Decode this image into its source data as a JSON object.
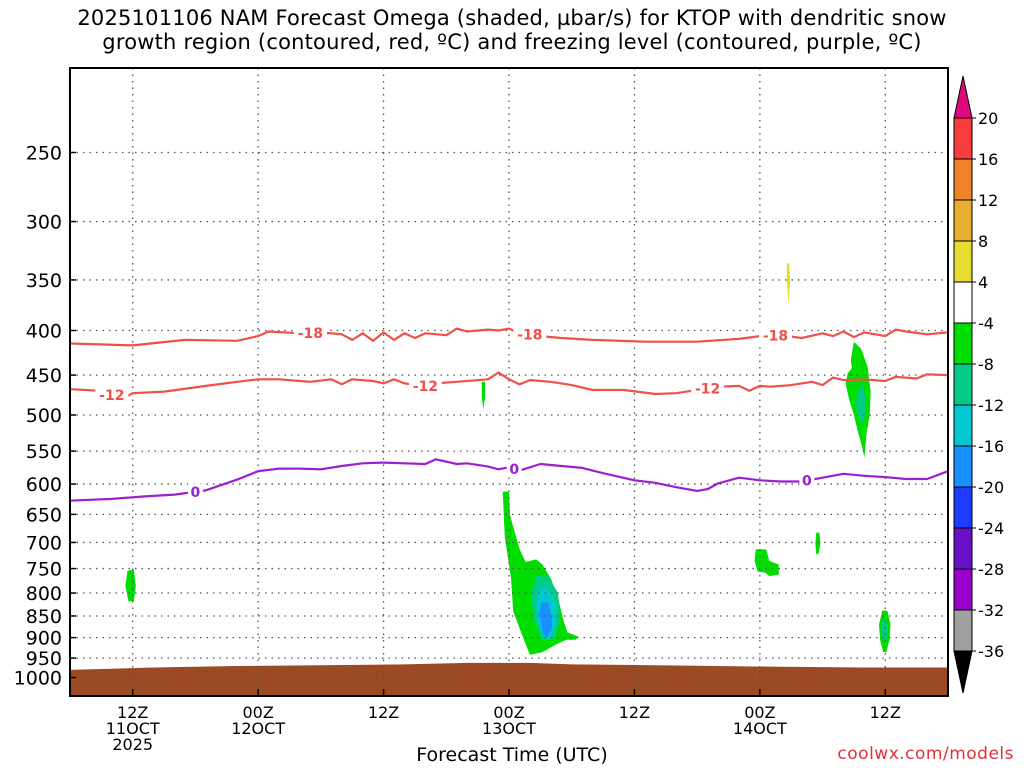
{
  "chart_data": {
    "type": "heatmap",
    "title_line1": "2025101106 NAM Forecast Omega (shaded, µbar/s) for KTOP with dendritic snow",
    "title_line2": "growth region (contoured, red, ºC) and freezing level (contoured, purple, ºC)",
    "xlabel": "Forecast Time (UTC)",
    "ylabel": "",
    "x_unit": "forecast hours from 2025-10-11 06Z",
    "xlim": [
      0,
      84
    ],
    "ylim": [
      1050,
      200
    ],
    "y_scale": "log-pressure",
    "y_ticks": [
      250,
      300,
      350,
      400,
      450,
      500,
      550,
      600,
      650,
      700,
      750,
      800,
      850,
      900,
      950,
      1000
    ],
    "x_ticks": [
      {
        "hour": 6,
        "lines": [
          "12Z",
          "11OCT",
          "2025"
        ]
      },
      {
        "hour": 18,
        "lines": [
          "00Z",
          "12OCT"
        ]
      },
      {
        "hour": 30,
        "lines": [
          "12Z"
        ]
      },
      {
        "hour": 42,
        "lines": [
          "00Z",
          "13OCT"
        ]
      },
      {
        "hour": 54,
        "lines": [
          "12Z"
        ]
      },
      {
        "hour": 66,
        "lines": [
          "00Z",
          "14OCT"
        ]
      },
      {
        "hour": 78,
        "lines": [
          "12Z"
        ]
      }
    ],
    "grid": true,
    "colorbar": {
      "levels": [
        -36,
        -32,
        -28,
        -24,
        -20,
        -16,
        -12,
        -8,
        -4,
        4,
        8,
        12,
        16,
        20
      ],
      "colors": [
        "#000000",
        "#a0a0a0",
        "#9a00cc",
        "#6a0fc8",
        "#1e3cff",
        "#1a8fff",
        "#00c8d2",
        "#00cc88",
        "#00dd00",
        "#ffffff",
        "#e6dc32",
        "#e6af2d",
        "#f08228",
        "#fa3c3c",
        "#e0087e"
      ]
    },
    "contours": [
      {
        "label": "-18",
        "color": "#f0504a",
        "kind": "dendritic",
        "label_hours": [
          23,
          44,
          67.5
        ],
        "points": [
          [
            0,
            414
          ],
          [
            6,
            416
          ],
          [
            11,
            410
          ],
          [
            16,
            411
          ],
          [
            18,
            406
          ],
          [
            19,
            401
          ],
          [
            22,
            403
          ],
          [
            24,
            402
          ],
          [
            26,
            404
          ],
          [
            27,
            410
          ],
          [
            28,
            403
          ],
          [
            29,
            411
          ],
          [
            30,
            402
          ],
          [
            31,
            410
          ],
          [
            32,
            403
          ],
          [
            33,
            408
          ],
          [
            34,
            403
          ],
          [
            36,
            405
          ],
          [
            37,
            398
          ],
          [
            38,
            401
          ],
          [
            40,
            399
          ],
          [
            41,
            400
          ],
          [
            42,
            398
          ],
          [
            43,
            403
          ],
          [
            45,
            406
          ],
          [
            47,
            408
          ],
          [
            50,
            410
          ],
          [
            55,
            412
          ],
          [
            60,
            412
          ],
          [
            64,
            409
          ],
          [
            66,
            406
          ],
          [
            68,
            405
          ],
          [
            70,
            408
          ],
          [
            72,
            403
          ],
          [
            73,
            406
          ],
          [
            74,
            401
          ],
          [
            75,
            407
          ],
          [
            76,
            402
          ],
          [
            78,
            406
          ],
          [
            79,
            399
          ],
          [
            80,
            401
          ],
          [
            82,
            404
          ],
          [
            84,
            402
          ]
        ]
      },
      {
        "label": "-12",
        "color": "#f0504a",
        "kind": "dendritic",
        "label_hours": [
          4,
          34,
          61
        ],
        "points": [
          [
            0,
            467
          ],
          [
            3,
            469
          ],
          [
            5,
            479
          ],
          [
            6,
            472
          ],
          [
            9,
            470
          ],
          [
            13,
            463
          ],
          [
            16,
            458
          ],
          [
            18,
            455
          ],
          [
            20,
            455
          ],
          [
            22,
            457
          ],
          [
            23,
            458
          ],
          [
            25,
            455
          ],
          [
            26,
            461
          ],
          [
            27,
            455
          ],
          [
            29,
            457
          ],
          [
            30,
            460
          ],
          [
            31,
            455
          ],
          [
            32,
            460
          ],
          [
            34,
            463
          ],
          [
            35,
            460
          ],
          [
            37,
            458
          ],
          [
            40,
            455
          ],
          [
            41,
            447
          ],
          [
            42,
            455
          ],
          [
            43,
            461
          ],
          [
            44,
            456
          ],
          [
            46,
            458
          ],
          [
            48,
            462
          ],
          [
            50,
            468
          ],
          [
            53,
            468
          ],
          [
            56,
            473
          ],
          [
            58,
            472
          ],
          [
            62,
            464
          ],
          [
            64,
            463
          ],
          [
            65,
            469
          ],
          [
            66,
            463
          ],
          [
            67,
            464
          ],
          [
            69,
            462
          ],
          [
            71,
            458
          ],
          [
            72,
            462
          ],
          [
            73,
            453
          ],
          [
            74,
            456
          ],
          [
            76,
            455
          ],
          [
            78,
            457
          ],
          [
            79,
            452
          ],
          [
            81,
            454
          ],
          [
            82,
            449
          ],
          [
            84,
            450
          ]
        ]
      },
      {
        "label": "0",
        "color": "#9b1fd0",
        "kind": "freezing",
        "label_hours": [
          12,
          42.5,
          70.5
        ],
        "points": [
          [
            0,
            627
          ],
          [
            4,
            624
          ],
          [
            7,
            620
          ],
          [
            10,
            617
          ],
          [
            13,
            610
          ],
          [
            16,
            593
          ],
          [
            18,
            580
          ],
          [
            20,
            576
          ],
          [
            22,
            576
          ],
          [
            24,
            577
          ],
          [
            26,
            572
          ],
          [
            28,
            568
          ],
          [
            30,
            567
          ],
          [
            32,
            568
          ],
          [
            34,
            569
          ],
          [
            35,
            562
          ],
          [
            37,
            569
          ],
          [
            38,
            568
          ],
          [
            40,
            573
          ],
          [
            41,
            577
          ],
          [
            42,
            574
          ],
          [
            43,
            579
          ],
          [
            45,
            569
          ],
          [
            47,
            572
          ],
          [
            49,
            575
          ],
          [
            51,
            583
          ],
          [
            54,
            594
          ],
          [
            56,
            598
          ],
          [
            58,
            605
          ],
          [
            60,
            611
          ],
          [
            61,
            608
          ],
          [
            62,
            599
          ],
          [
            64,
            590
          ],
          [
            66,
            594
          ],
          [
            68,
            596
          ],
          [
            70,
            596
          ],
          [
            72,
            590
          ],
          [
            74,
            584
          ],
          [
            76,
            587
          ],
          [
            78,
            589
          ],
          [
            80,
            592
          ],
          [
            82,
            592
          ],
          [
            84,
            580
          ]
        ]
      }
    ],
    "shaded_features": [
      {
        "color": "#00dd00",
        "points": [
          [
            41.4,
            612
          ],
          [
            41.6,
            690
          ],
          [
            42.2,
            770
          ],
          [
            42.4,
            840
          ],
          [
            43.2,
            890
          ],
          [
            44,
            942
          ],
          [
            45.2,
            935
          ],
          [
            46.6,
            915
          ],
          [
            47.5,
            905
          ],
          [
            48.4,
            905
          ],
          [
            48.6,
            897
          ],
          [
            47.6,
            888
          ],
          [
            47.2,
            860
          ],
          [
            46.7,
            810
          ],
          [
            46,
            770
          ],
          [
            45.2,
            742
          ],
          [
            44.6,
            732
          ],
          [
            43.6,
            737
          ],
          [
            43,
            712
          ],
          [
            42.1,
            652
          ],
          [
            42,
            612
          ]
        ]
      },
      {
        "color": "#00cc88",
        "points": [
          [
            44.6,
            765
          ],
          [
            45.7,
            765
          ],
          [
            46.7,
            800
          ],
          [
            46.9,
            860
          ],
          [
            46.3,
            905
          ],
          [
            45.1,
            905
          ],
          [
            44.4,
            860
          ],
          [
            44.1,
            800
          ]
        ]
      },
      {
        "color": "#00c8d2",
        "points": [
          [
            44.9,
            790
          ],
          [
            45.7,
            790
          ],
          [
            46.4,
            820
          ],
          [
            46.5,
            870
          ],
          [
            46,
            900
          ],
          [
            45.3,
            900
          ],
          [
            44.8,
            865
          ],
          [
            44.6,
            820
          ]
        ]
      },
      {
        "color": "#1a8fff",
        "points": [
          [
            45.1,
            820
          ],
          [
            45.7,
            820
          ],
          [
            46.1,
            850
          ],
          [
            46.1,
            880
          ],
          [
            45.7,
            898
          ],
          [
            45.3,
            895
          ],
          [
            45.1,
            870
          ],
          [
            44.9,
            845
          ]
        ]
      },
      {
        "color": "#00dd00",
        "points": [
          [
            74.7,
            432
          ],
          [
            74.8,
            442
          ],
          [
            74.4,
            448
          ],
          [
            74.2,
            460
          ],
          [
            74.5,
            478
          ],
          [
            75,
            500
          ],
          [
            75.3,
            518
          ],
          [
            75.8,
            545
          ],
          [
            76,
            560
          ],
          [
            76.2,
            525
          ],
          [
            76.5,
            500
          ],
          [
            76.6,
            470
          ],
          [
            76.3,
            440
          ],
          [
            75.7,
            420
          ],
          [
            75,
            412
          ]
        ]
      },
      {
        "color": "#00cc88",
        "points": [
          [
            75.4,
            470
          ],
          [
            75.8,
            460
          ],
          [
            76.1,
            478
          ],
          [
            76.1,
            500
          ],
          [
            75.8,
            512
          ],
          [
            75.4,
            500
          ],
          [
            75.2,
            485
          ]
        ]
      },
      {
        "color": "#00dd00",
        "points": [
          [
            5.5,
            754
          ],
          [
            6.1,
            752
          ],
          [
            6.3,
            785
          ],
          [
            6.1,
            818
          ],
          [
            5.6,
            818
          ],
          [
            5.3,
            785
          ]
        ]
      },
      {
        "color": "#00dd00",
        "points": [
          [
            65.6,
            713
          ],
          [
            66.6,
            713
          ],
          [
            66.9,
            735
          ],
          [
            67.8,
            742
          ],
          [
            67.8,
            762
          ],
          [
            66.9,
            765
          ],
          [
            66.5,
            758
          ],
          [
            65.8,
            756
          ],
          [
            65.5,
            735
          ]
        ]
      },
      {
        "color": "#00dd00",
        "points": [
          [
            71.4,
            682
          ],
          [
            71.7,
            682
          ],
          [
            71.8,
            702
          ],
          [
            71.6,
            722
          ],
          [
            71.4,
            722
          ],
          [
            71.3,
            702
          ]
        ]
      },
      {
        "color": "#00dd00",
        "points": [
          [
            77.7,
            838
          ],
          [
            78.2,
            838
          ],
          [
            78.5,
            870
          ],
          [
            78.4,
            905
          ],
          [
            78.1,
            935
          ],
          [
            77.8,
            935
          ],
          [
            77.5,
            905
          ],
          [
            77.4,
            870
          ]
        ]
      },
      {
        "color": "#00cc88",
        "points": [
          [
            77.7,
            860
          ],
          [
            78.1,
            860
          ],
          [
            78.2,
            880
          ],
          [
            78.1,
            905
          ],
          [
            77.7,
            905
          ],
          [
            77.6,
            880
          ]
        ]
      },
      {
        "color": "#00dd00",
        "points": [
          [
            39.4,
            458
          ],
          [
            39.7,
            458
          ],
          [
            39.7,
            478
          ],
          [
            39.55,
            492
          ],
          [
            39.4,
            478
          ]
        ]
      },
      {
        "color": "#e6dc32",
        "points": [
          [
            68.6,
            335
          ],
          [
            68.8,
            335
          ],
          [
            68.9,
            350
          ],
          [
            68.75,
            372
          ],
          [
            68.55,
            350
          ]
        ]
      }
    ],
    "terrain": {
      "color": "#9c4a24",
      "points": [
        [
          0,
          980
        ],
        [
          8,
          974
        ],
        [
          16,
          970
        ],
        [
          24,
          968
        ],
        [
          32,
          966
        ],
        [
          38,
          962
        ],
        [
          42,
          962
        ],
        [
          44,
          962
        ],
        [
          48,
          966
        ],
        [
          56,
          968
        ],
        [
          62,
          970
        ],
        [
          68,
          972
        ],
        [
          76,
          974
        ],
        [
          84,
          974
        ]
      ]
    }
  },
  "credit": "coolwx.com/models"
}
